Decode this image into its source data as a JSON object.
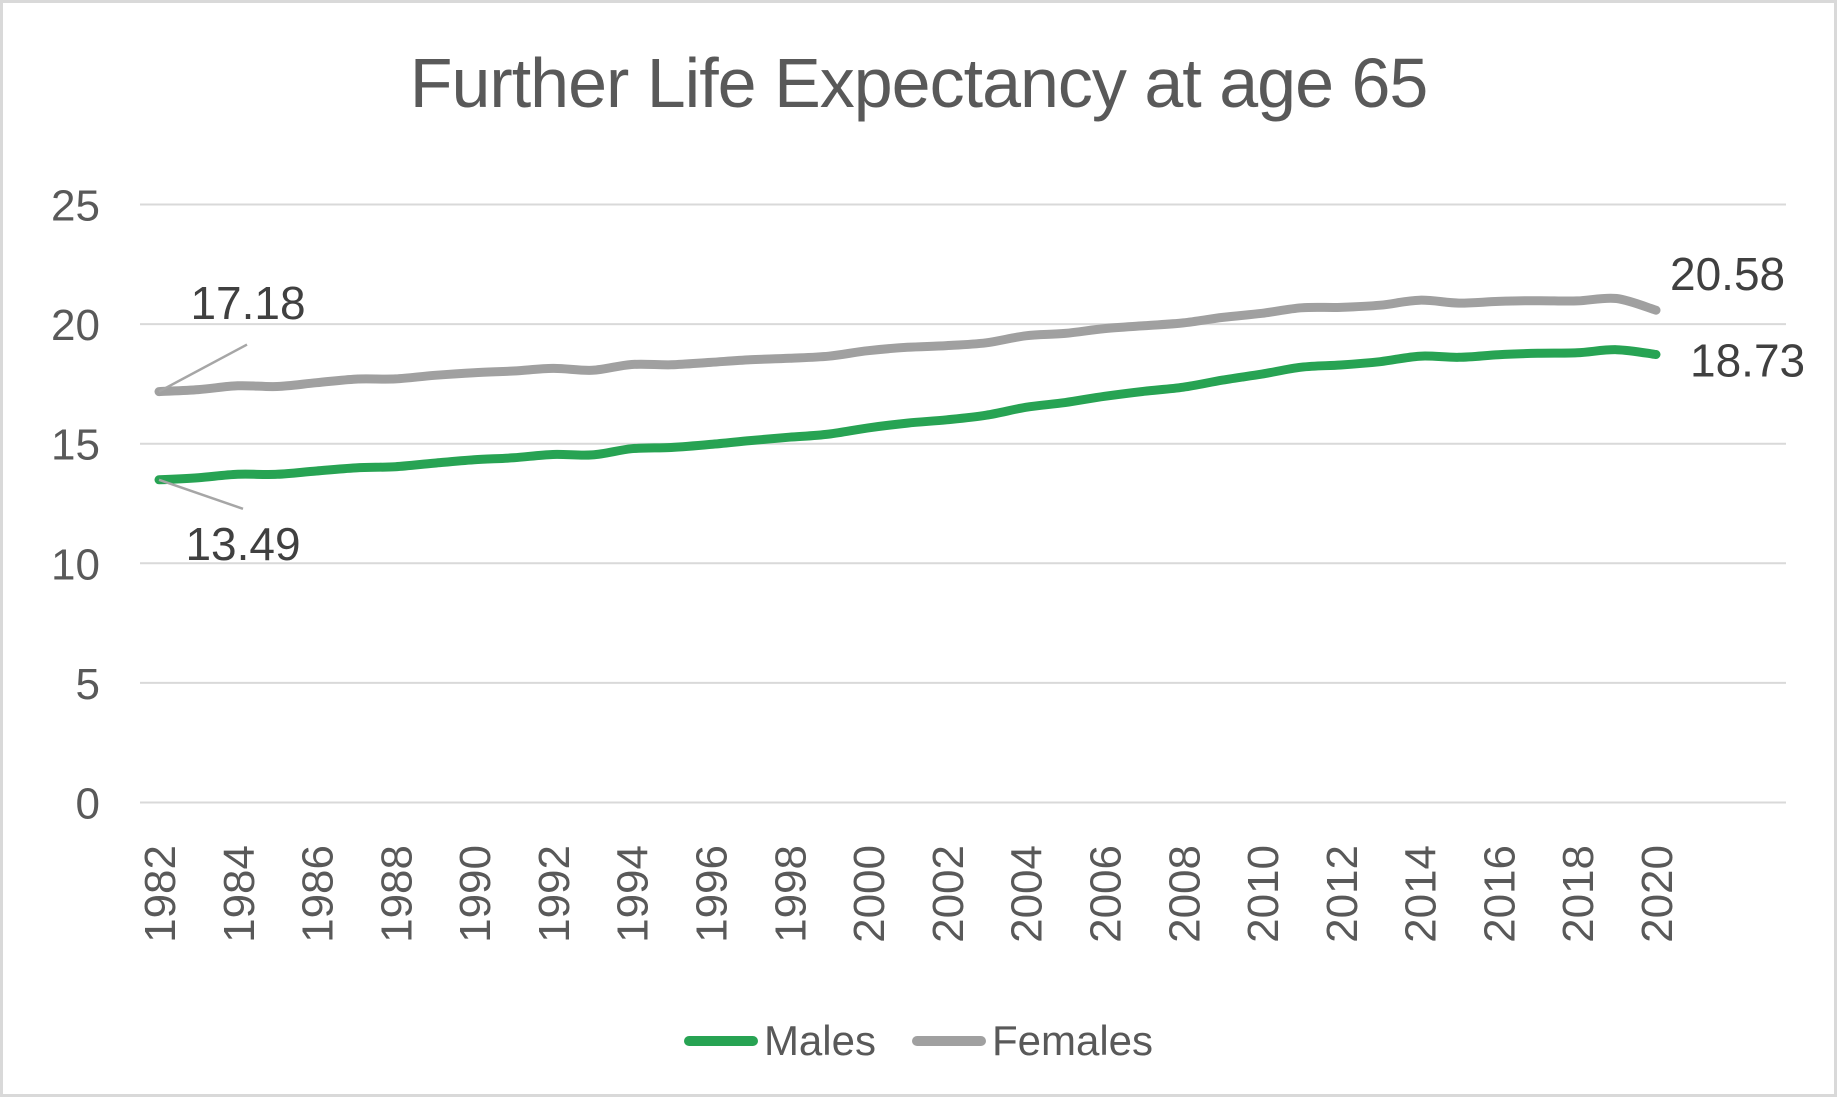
{
  "chart_data": {
    "type": "line",
    "title": "Further Life Expectancy at age 65",
    "xlabel": "",
    "ylabel": "",
    "ylim": [
      0,
      25
    ],
    "grid": "horizontal",
    "legend_position": "bottom",
    "x": [
      1982,
      1983,
      1984,
      1985,
      1986,
      1987,
      1988,
      1989,
      1990,
      1991,
      1992,
      1993,
      1994,
      1995,
      1996,
      1997,
      1998,
      1999,
      2000,
      2001,
      2002,
      2003,
      2004,
      2005,
      2006,
      2007,
      2008,
      2009,
      2010,
      2011,
      2012,
      2013,
      2014,
      2015,
      2016,
      2017,
      2018,
      2019,
      2020
    ],
    "x_tick_labels": [
      "1982",
      "1984",
      "1986",
      "1988",
      "1990",
      "1992",
      "1994",
      "1996",
      "1998",
      "2000",
      "2002",
      "2004",
      "2006",
      "2008",
      "2010",
      "2012",
      "2014",
      "2016",
      "2018",
      "2020"
    ],
    "y_ticks": [
      0,
      5,
      10,
      15,
      20,
      25
    ],
    "y_tick_labels": [
      "0",
      "5",
      "10",
      "15",
      "20",
      "25"
    ],
    "series": [
      {
        "name": "Males",
        "color": "#27A353",
        "start_label": "13.49",
        "end_label": "18.73",
        "values": [
          13.49,
          13.58,
          13.72,
          13.72,
          13.86,
          13.99,
          14.04,
          14.19,
          14.33,
          14.41,
          14.55,
          14.53,
          14.79,
          14.84,
          14.97,
          15.13,
          15.27,
          15.4,
          15.66,
          15.86,
          16.0,
          16.19,
          16.52,
          16.72,
          16.98,
          17.19,
          17.36,
          17.66,
          17.91,
          18.2,
          18.29,
          18.43,
          18.66,
          18.61,
          18.72,
          18.78,
          18.8,
          18.93,
          18.73
        ]
      },
      {
        "name": "Females",
        "color": "#A0A0A0",
        "start_label": "17.18",
        "end_label": "20.58",
        "values": [
          17.18,
          17.26,
          17.42,
          17.39,
          17.55,
          17.7,
          17.71,
          17.86,
          17.97,
          18.04,
          18.15,
          18.07,
          18.31,
          18.3,
          18.4,
          18.51,
          18.57,
          18.66,
          18.89,
          19.03,
          19.1,
          19.22,
          19.51,
          19.61,
          19.81,
          19.93,
          20.05,
          20.28,
          20.45,
          20.68,
          20.7,
          20.79,
          21.0,
          20.88,
          20.95,
          20.98,
          20.97,
          21.07,
          20.58
        ]
      }
    ]
  },
  "colors": {
    "background": "#FFFFFF",
    "frame_border": "#D9D9D9",
    "gridline": "#D9D9D9",
    "axis_text": "#595959",
    "title_text": "#595959",
    "data_label_text": "#404040",
    "leader_line": "#A6A6A6",
    "legend_text": "#595959"
  }
}
